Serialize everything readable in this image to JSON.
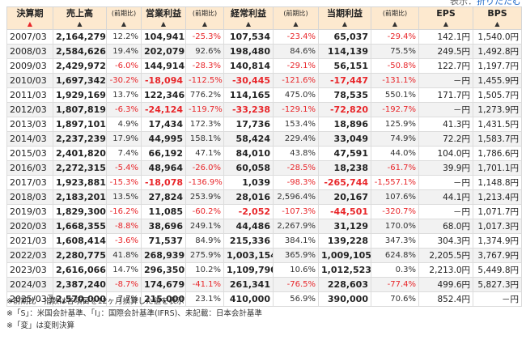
{
  "display_toggle": {
    "label": "表示：",
    "link": "折りたたむ"
  },
  "columns": [
    {
      "key": "year",
      "label": "決算期",
      "arrow": "▲",
      "active": true,
      "small": false
    },
    {
      "key": "sales",
      "label": "売上高",
      "arrow": "▲",
      "active": false,
      "small": false
    },
    {
      "key": "sales_pct",
      "label": "(前期比)",
      "arrow": "▲",
      "active": false,
      "small": true
    },
    {
      "key": "op",
      "label": "営業利益",
      "arrow": "▲",
      "active": false,
      "small": false
    },
    {
      "key": "op_pct",
      "label": "(前期比)",
      "arrow": "▲",
      "active": false,
      "small": true
    },
    {
      "key": "ord",
      "label": "経常利益",
      "arrow": "▲",
      "active": false,
      "small": false
    },
    {
      "key": "ord_pct",
      "label": "(前期比)",
      "arrow": "▲",
      "active": false,
      "small": true
    },
    {
      "key": "net",
      "label": "当期利益",
      "arrow": "▲",
      "active": false,
      "small": false
    },
    {
      "key": "net_pct",
      "label": "(前期比)",
      "arrow": "▲",
      "active": false,
      "small": true
    },
    {
      "key": "eps",
      "label": "EPS",
      "arrow": "▲",
      "active": false,
      "small": false
    },
    {
      "key": "bps",
      "label": "BPS",
      "arrow": "▲",
      "active": false,
      "small": false
    }
  ],
  "rows": [
    [
      "2007/03",
      "2,164,279",
      "12.2%",
      "104,941",
      "-25.3%",
      "107,534",
      "-23.4%",
      "65,037",
      "-29.4%",
      "142.1円",
      "1,540.0円"
    ],
    [
      "2008/03",
      "2,584,626",
      "19.4%",
      "202,079",
      "92.6%",
      "198,480",
      "84.6%",
      "114,139",
      "75.5%",
      "249.5円",
      "1,492.8円"
    ],
    [
      "2009/03",
      "2,429,972",
      "-6.0%",
      "144,914",
      "-28.3%",
      "140,814",
      "-29.1%",
      "56,151",
      "-50.8%",
      "122.7円",
      "1,197.7円"
    ],
    [
      "2010/03",
      "1,697,342",
      "-30.2%",
      "-18,094",
      "-112.5%",
      "-30,445",
      "-121.6%",
      "-17,447",
      "-131.1%",
      "－円",
      "1,455.9円"
    ],
    [
      "2011/03",
      "1,929,169",
      "13.7%",
      "122,346",
      "776.2%",
      "114,165",
      "475.0%",
      "78,535",
      "550.1%",
      "171.7円",
      "1,505.7円"
    ],
    [
      "2012/03",
      "1,807,819",
      "-6.3%",
      "-24,124",
      "-119.7%",
      "-33,238",
      "-129.1%",
      "-72,820",
      "-192.7%",
      "－円",
      "1,273.9円"
    ],
    [
      "2013/03",
      "1,897,101",
      "4.9%",
      "17,434",
      "172.3%",
      "17,736",
      "153.4%",
      "18,896",
      "125.9%",
      "41.3円",
      "1,431.5円"
    ],
    [
      "2014/03",
      "2,237,239",
      "17.9%",
      "44,995",
      "158.1%",
      "58,424",
      "229.4%",
      "33,049",
      "74.9%",
      "72.2円",
      "1,583.7円"
    ],
    [
      "2015/03",
      "2,401,820",
      "7.4%",
      "66,192",
      "47.1%",
      "84,010",
      "43.8%",
      "47,591",
      "44.0%",
      "104.0円",
      "1,786.6円"
    ],
    [
      "2016/03",
      "2,272,315",
      "-5.4%",
      "48,964",
      "-26.0%",
      "60,058",
      "-28.5%",
      "18,238",
      "-61.7%",
      "39.9円",
      "1,701.1円"
    ],
    [
      "2017/03",
      "1,923,881",
      "-15.3%",
      "-18,078",
      "-136.9%",
      "1,039",
      "-98.3%",
      "-265,744",
      "-1,557.1%",
      "－円",
      "1,148.8円"
    ],
    [
      "2018/03",
      "2,183,201",
      "13.5%",
      "27,824",
      "253.9%",
      "28,016",
      "2,596.4%",
      "20,167",
      "107.6%",
      "44.1円",
      "1,213.4円"
    ],
    [
      "2019/03",
      "1,829,300",
      "-16.2%",
      "11,085",
      "-60.2%",
      "-2,052",
      "-107.3%",
      "-44,501",
      "-320.7%",
      "－円",
      "1,071.7円"
    ],
    [
      "2020/03",
      "1,668,355",
      "-8.8%",
      "38,696",
      "249.1%",
      "44,486",
      "2,267.9%",
      "31,129",
      "170.0%",
      "68.0円",
      "1,017.3円"
    ],
    [
      "2021/03",
      "1,608,414",
      "-3.6%",
      "71,537",
      "84.9%",
      "215,336",
      "384.1%",
      "139,228",
      "347.3%",
      "304.3円",
      "1,374.9円"
    ],
    [
      "2022/03",
      "2,280,775",
      "41.8%",
      "268,939",
      "275.9%",
      "1,003,154",
      "365.9%",
      "1,009,105",
      "624.8%",
      "2,205.5円",
      "3,767.9円"
    ],
    [
      "2023/03",
      "2,616,066",
      "14.7%",
      "296,350",
      "10.2%",
      "1,109,790",
      "10.6%",
      "1,012,523",
      "0.3%",
      "2,213.0円",
      "5,449.8円"
    ],
    [
      "2024/03",
      "2,387,240",
      "-8.7%",
      "174,679",
      "-41.1%",
      "261,341",
      "-76.5%",
      "228,603",
      "-77.4%",
      "499.6円",
      "5,827.3円"
    ],
    [
      "2025/03予",
      "2,570,000",
      "7.7%",
      "215,000",
      "23.1%",
      "410,000",
      "56.9%",
      "390,000",
      "70.6%",
      "852.4円",
      "－円"
    ]
  ],
  "notes": [
    "※前期比・指数は各項目を12ヶ月換算した値を表示",
    "※「S」：米国会計基準、「I」：国際会計基準(IFRS)、未記載：日本会計基準",
    "※「変」は変則決算"
  ],
  "colors": {
    "header_bg": "#fde9cf",
    "negative": "#e8262a",
    "stripe": "#f2f2f2",
    "link": "#1a66c8"
  }
}
